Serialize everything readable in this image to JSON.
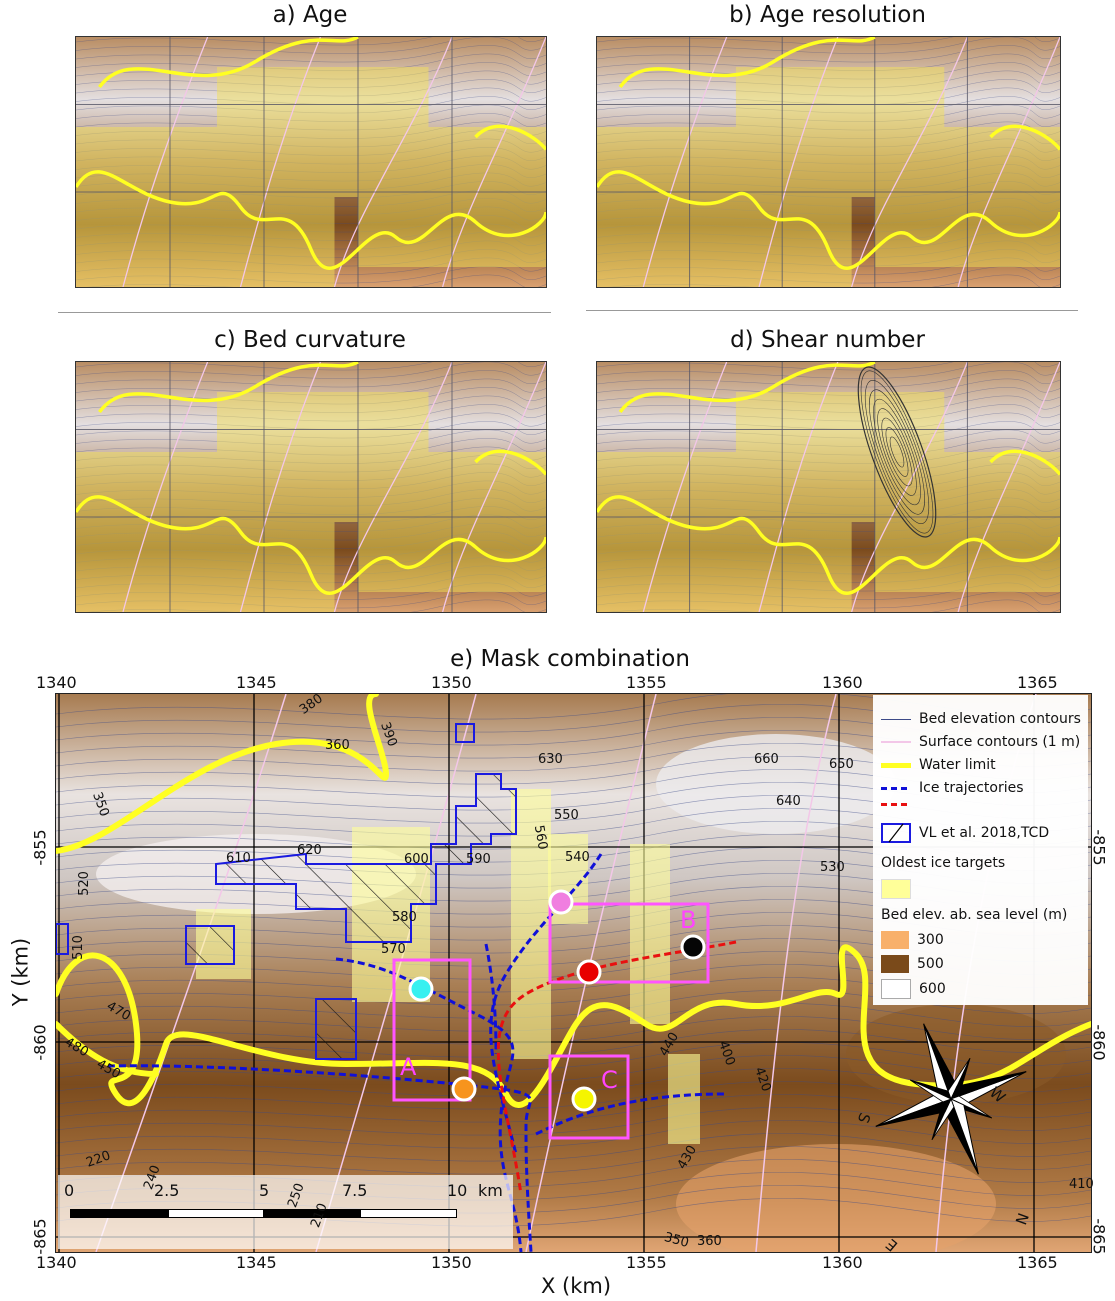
{
  "panels": [
    {
      "id": "a",
      "title": "a) Age"
    },
    {
      "id": "b",
      "title": "b) Age resolution"
    },
    {
      "id": "c",
      "title": "c) Bed curvature"
    },
    {
      "id": "d",
      "title": "d) Shear number"
    }
  ],
  "panel_e": {
    "title": "e) Mask combination",
    "x_ticks": [
      "1340",
      "1345",
      "1350",
      "1355",
      "1360",
      "1365"
    ],
    "y_ticks": [
      "-855",
      "-860",
      "-865"
    ],
    "xlabel": "X (km)",
    "ylabel": "Y (km)",
    "legend": {
      "bed_contours": "Bed elevation contours",
      "surface_contours": "Surface contours (1 m)",
      "water_limit": "Water limit",
      "ice_trajectories": "Ice trajectories",
      "vl_tcd": "VL et al. 2018,TCD",
      "oldest_ice": "Oldest ice targets",
      "bed_elev_title": "Bed elev. ab. sea level (m)",
      "elev_300": "300",
      "elev_500": "500",
      "elev_600": "600"
    },
    "boxes": {
      "a": "A",
      "b": "B",
      "c": "C"
    },
    "scale_bar": {
      "labels": [
        "0",
        "2.5",
        "5",
        "7.5",
        "10"
      ],
      "unit": "km"
    },
    "compass": {
      "n": "N",
      "s": "S",
      "e": "E",
      "w": "W"
    },
    "contour_labels": [
      "380",
      "390",
      "360",
      "350",
      "520",
      "510",
      "470",
      "480",
      "450",
      "620",
      "610",
      "600",
      "590",
      "580",
      "570",
      "550",
      "560",
      "540",
      "630",
      "660",
      "650",
      "640",
      "530",
      "440",
      "400",
      "420",
      "430",
      "410",
      "220",
      "240",
      "250",
      "210",
      "350",
      "360"
    ],
    "colors": {
      "water_limit": "#ffff22",
      "trajectory": "#1010d8",
      "trajectory_alt": "#e81010",
      "vl_outline": "#1a1ae0",
      "target_box": "#ff55ff",
      "oldest_ice_fill": "#ffff99",
      "bed_300": "#f8b06a",
      "bed_500": "#7a4a1a",
      "bed_600": "#ffffff"
    },
    "markers": [
      "cyan",
      "orange",
      "violet",
      "red",
      "black",
      "yellow"
    ]
  }
}
